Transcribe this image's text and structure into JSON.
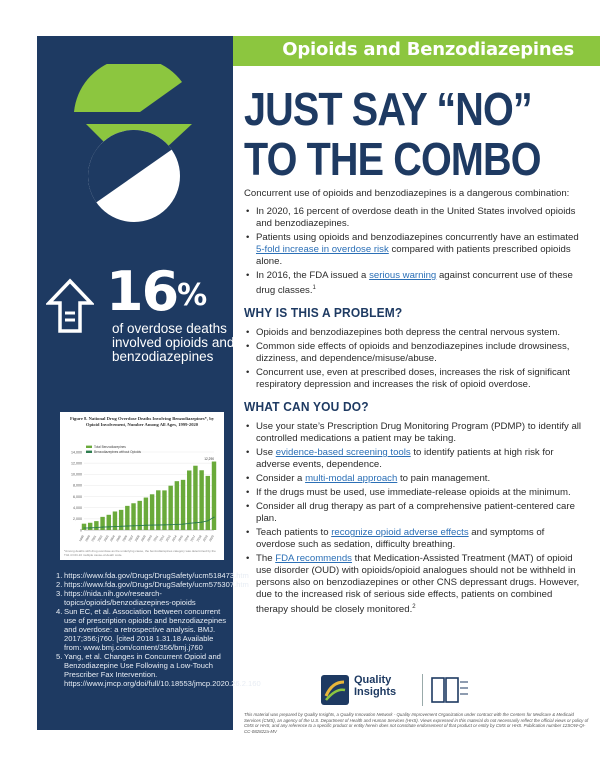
{
  "banner": {
    "title": "Opioids and Benzodiazepines"
  },
  "headline": {
    "line1": "JUST SAY “NO”",
    "line2": "TO THE COMBO"
  },
  "stat": {
    "number": "16",
    "unit": "%",
    "text": "of overdose deaths involved opioids and benzodiazepines"
  },
  "chart": {
    "title": "Figure 8. National Drug Overdose Deaths Involving Benzodiazepines*, by Opioid Involvement, Number Among All Ages, 1999-2020",
    "note": "*Among deaths with drug overdose as the underlying cause, the benzodiazepines category was determined by the T42.4 ICD-10 multiple cause-of-death code.",
    "peak_label": "12,290"
  },
  "chart_data": {
    "type": "line",
    "title": "Figure 8. National Drug Overdose Deaths Involving Benzodiazepines*, by Opioid Involvement, Number Among All Ages, 1999-2020",
    "x": [
      "1999",
      "2000",
      "2001",
      "2002",
      "2003",
      "2004",
      "2005",
      "2006",
      "2007",
      "2008",
      "2009",
      "2010",
      "2011",
      "2012",
      "2013",
      "2014",
      "2015",
      "2016",
      "2017",
      "2018",
      "2019",
      "2020"
    ],
    "series": [
      {
        "name": "Total Benzodiazepines",
        "values": [
          1135,
          1298,
          1594,
          2358,
          2728,
          3325,
          3614,
          4332,
          4800,
          5232,
          5824,
          6410,
          7124,
          7110,
          7946,
          8763,
          9001,
          10684,
          11537,
          10724,
          9711,
          12290
        ],
        "color": "#6aaa3a"
      },
      {
        "name": "Benzodiazepines without Opioids",
        "values": [
          350,
          380,
          430,
          520,
          560,
          620,
          660,
          720,
          760,
          800,
          850,
          880,
          900,
          920,
          960,
          1000,
          1050,
          1200,
          1300,
          1400,
          1650,
          2300
        ],
        "color": "#2e7d4f"
      }
    ],
    "ylim": [
      0,
      14000
    ],
    "yticks": [
      "0",
      "2,000",
      "4,000",
      "6,000",
      "8,000",
      "10,000",
      "12,000",
      "14,000"
    ],
    "grid": true,
    "legend": "top-left"
  },
  "references": [
    {
      "num": "1.",
      "text": "https://www.fda.gov/Drugs/DrugSafety/ucm518473.htm"
    },
    {
      "num": "2.",
      "text": "https://www.fda.gov/Drugs/DrugSafety/ucm575307.htm"
    },
    {
      "num": "3.",
      "text": "https://nida.nih.gov/research-topics/opioids/benzodiazepines-opioids"
    },
    {
      "num": "4.",
      "text": "Sun EC, et al. Association between concurrent use of prescription opioids and benzodiazepines and overdose: a retrospective analysis. BMJ. 2017;356:j760. [cited 2018 1.31.18 Available from: www.bmj.com/content/356/bmj.j760"
    },
    {
      "num": "5.",
      "text": "Yang, et al. Changes in Concurrent Opioid and Benzodiazepine Use Following a Low-Touch Prescriber Fax Intervention. https://www.jmcp.org/doi/full/10.18553/jmcp.2020.26.2.160"
    }
  ],
  "intro": "Concurrent use of opioids and benzodiazepines is a dangerous combination:",
  "intro_bullets": [
    {
      "pre": "In 2020, 16 percent of overdose death in the United States involved opioids and benzodiazepines.",
      "link": "",
      "post": ""
    },
    {
      "pre": "Patients using opioids and benzodiazepines concurrently have an estimated ",
      "link": "5-fold increase in overdose risk",
      "post": " compared with patients prescribed opioids alone."
    },
    {
      "pre": "In 2016, the FDA issued a ",
      "link": "serious warning",
      "post": " against concurrent use of these drug classes.",
      "sup": "1"
    }
  ],
  "section1": {
    "heading": "WHY IS THIS A PROBLEM?",
    "bullets": [
      "Opioids and benzodiazepines both depress the central nervous system.",
      "Common side effects of opioids and benzodiazepines include drowsiness, dizziness, and dependence/misuse/abuse.",
      "Concurrent use, even at prescribed doses, increases the risk of significant respiratory depression and increases the risk of opioid overdose."
    ]
  },
  "section2": {
    "heading": "WHAT CAN YOU DO?",
    "bullets": [
      {
        "pre": "Use your state’s Prescription Drug Monitoring Program (PDMP) to identify all controlled medications a patient may be taking.",
        "link": "",
        "post": ""
      },
      {
        "pre": "Use ",
        "link": "evidence-based screening tools",
        "post": " to identify patients at high risk for adverse events, dependence."
      },
      {
        "pre": "Consider a ",
        "link": "multi-modal approach",
        "post": " to pain management."
      },
      {
        "pre": "If the drugs must be used, use immediate-release opioids at the minimum.",
        "link": "",
        "post": ""
      },
      {
        "pre": "Consider all drug therapy as part of a comprehensive patient-centered care plan.",
        "link": "",
        "post": ""
      },
      {
        "pre": "Teach patients to ",
        "link": "recognize opioid adverse effects",
        "post": " and symptoms of overdose such as sedation, difficulty breathing."
      },
      {
        "pre": "The ",
        "link": "FDA recommends",
        "post": " that Medication-Assisted Treatment (MAT) of opioid use disorder (OUD) with opioids/opioid analogues should not be withheld in persons also on benzodiazepines or other CNS depressant drugs. However, due to the increased risk of serious side effects, patients on combined therapy should be closely monitored.",
        "sup": "2"
      }
    ]
  },
  "footer": {
    "qi_name_line1": "Quality",
    "qi_name_line2": "Insights",
    "disclaimer": "This material was prepared by Quality Insights, a Quality Innovation Network - Quality Improvement Organization under contract with the Centers for Medicare & Medicaid Services (CMS), an agency of the U.S. Department of Health and Human Services (HHS). Views expressed in this material do not necessarily reflect the official views or policy of CMS or HHS, and any reference to a specific product or entity herein does not constitute endorsement of that product or entity by CMS or HHS. Publication number 12SOW-QI-CC-082822a-MV"
  }
}
